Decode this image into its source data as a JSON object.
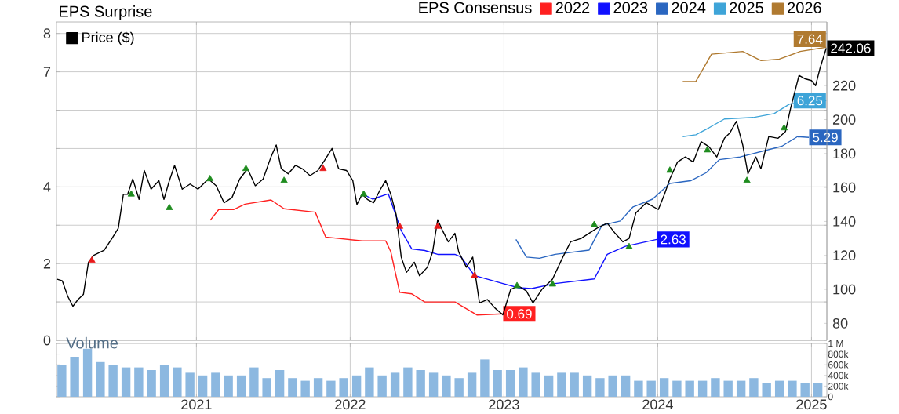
{
  "chart_data": [
    {
      "type": "line",
      "legend_title": "EPS Consensus",
      "annotations": [
        "EPS Surprise"
      ],
      "series": [
        {
          "name": "2022",
          "color": "#ff2020",
          "axis": "y",
          "x": [
            2021.09,
            2021.145,
            2021.244,
            2021.316,
            2021.485,
            2021.57,
            2021.773,
            2021.841,
            2022.078,
            2022.231,
            2022.264,
            2022.322,
            2022.401,
            2022.485,
            2022.681,
            2022.824,
            2022.993
          ],
          "values": [
            3.13,
            3.41,
            3.41,
            3.55,
            3.66,
            3.43,
            3.34,
            2.69,
            2.59,
            2.59,
            2.31,
            1.25,
            1.21,
            1.0,
            1.0,
            0.66,
            0.69
          ],
          "value_labels": [
            null,
            null,
            null,
            null,
            null,
            null,
            null,
            null,
            null,
            null,
            null,
            null,
            null,
            null,
            null,
            null,
            "0.69"
          ]
        },
        {
          "name": "2023",
          "color": "#1010ff",
          "axis": "y",
          "x": [
            2022.078,
            2022.146,
            2022.248,
            2022.332,
            2022.401,
            2022.485,
            2022.569,
            2022.681,
            2022.722,
            2022.808,
            2022.993,
            2023.095,
            2023.18,
            2023.333,
            2023.587,
            2023.672,
            2023.79,
            2023.994
          ],
          "values": [
            3.82,
            3.68,
            3.82,
            2.86,
            2.38,
            2.34,
            2.24,
            2.24,
            2.17,
            1.69,
            1.48,
            1.37,
            1.35,
            1.48,
            1.6,
            2.24,
            2.45,
            2.63
          ],
          "value_labels": [
            null,
            null,
            null,
            null,
            null,
            null,
            null,
            null,
            null,
            null,
            null,
            null,
            null,
            null,
            null,
            null,
            null,
            "2.63"
          ]
        },
        {
          "name": "2024",
          "color": "#2a66c0",
          "axis": "y",
          "x": [
            2023.078,
            2023.146,
            2023.231,
            2023.333,
            2023.553,
            2023.638,
            2023.757,
            2023.84,
            2023.966,
            2024.079,
            2024.214,
            2024.316,
            2024.4,
            2024.536,
            2024.672,
            2024.808,
            2024.909,
            2024.983
          ],
          "values": [
            2.63,
            2.17,
            2.14,
            2.24,
            2.35,
            3.0,
            3.11,
            3.48,
            3.68,
            4.09,
            4.16,
            4.37,
            4.71,
            4.78,
            4.92,
            5.06,
            5.31,
            5.29
          ],
          "value_labels": [
            null,
            null,
            null,
            null,
            null,
            null,
            null,
            null,
            null,
            null,
            null,
            null,
            null,
            null,
            null,
            null,
            null,
            "5.29"
          ]
        },
        {
          "name": "2025",
          "color": "#3ea4d8",
          "axis": "y",
          "x": [
            2024.163,
            2024.248,
            2024.333,
            2024.434,
            2024.621,
            2024.757,
            2024.858,
            2024.959,
            2025.096
          ],
          "values": [
            5.31,
            5.36,
            5.54,
            5.77,
            5.81,
            5.91,
            6.16,
            6.21,
            6.25
          ],
          "value_labels": [
            null,
            null,
            null,
            null,
            null,
            null,
            null,
            null,
            "6.25"
          ]
        },
        {
          "name": "2026",
          "color": "#b07a30",
          "axis": "y",
          "x": [
            2024.163,
            2024.248,
            2024.35,
            2024.553,
            2024.672,
            2024.791,
            2024.926,
            2025.096
          ],
          "values": [
            6.75,
            6.75,
            7.46,
            7.53,
            7.29,
            7.33,
            7.53,
            7.64
          ],
          "value_labels": [
            null,
            null,
            null,
            null,
            null,
            null,
            null,
            "7.64"
          ]
        },
        {
          "name": "Price ($)",
          "color": "#000000",
          "axis": "y2",
          "x": [
            2020.095,
            2020.128,
            2020.163,
            2020.197,
            2020.23,
            2020.265,
            2020.298,
            2020.332,
            2020.4,
            2020.451,
            2020.492,
            2020.525,
            2020.553,
            2020.586,
            2020.627,
            2020.661,
            2020.705,
            2020.756,
            2020.789,
            2020.824,
            2020.858,
            2020.908,
            2020.959,
            2021.01,
            2021.078,
            2021.129,
            2021.18,
            2021.231,
            2021.282,
            2021.333,
            2021.383,
            2021.434,
            2021.485,
            2021.519,
            2021.552,
            2021.597,
            2021.644,
            2021.689,
            2021.739,
            2021.79,
            2021.834,
            2021.882,
            2021.925,
            2021.976,
            2022.017,
            2022.044,
            2022.078,
            2022.112,
            2022.152,
            2022.197,
            2022.231,
            2022.264,
            2022.299,
            2022.332,
            2022.366,
            2022.417,
            2022.451,
            2022.502,
            2022.536,
            2022.569,
            2022.604,
            2022.638,
            2022.681,
            2022.706,
            2022.756,
            2022.797,
            2022.841,
            2022.892,
            2022.942,
            2022.993,
            2023.044,
            2023.095,
            2023.146,
            2023.189,
            2023.247,
            2023.316,
            2023.383,
            2023.434,
            2023.502,
            2023.553,
            2023.604,
            2023.672,
            2023.723,
            2023.774,
            2023.814,
            2023.858,
            2023.926,
            2024.004,
            2024.044,
            2024.079,
            2024.129,
            2024.18,
            2024.231,
            2024.282,
            2024.333,
            2024.384,
            2024.434,
            2024.468,
            2024.512,
            2024.553,
            2024.587,
            2024.638,
            2024.671,
            2024.722,
            2024.783,
            2024.831,
            2024.865,
            2024.919,
            2024.959,
            2025.0,
            2025.027,
            2025.055,
            2025.096
          ],
          "values": [
            106,
            105,
            96,
            90,
            94,
            97,
            116,
            120,
            123,
            130,
            136,
            156,
            156,
            165,
            153,
            170,
            159,
            164,
            153,
            164,
            173,
            159,
            162,
            159,
            165,
            161,
            151,
            154,
            165,
            171,
            161,
            165,
            178,
            185,
            171,
            168,
            173,
            171,
            167,
            170,
            176,
            183,
            171,
            170,
            164,
            150,
            156,
            153,
            151,
            159,
            164,
            156,
            144,
            119,
            110,
            116,
            108,
            113,
            122,
            141,
            134,
            128,
            133,
            122,
            113,
            119,
            92,
            94,
            89,
            85,
            100,
            102,
            99,
            92,
            100,
            106,
            119,
            128,
            130,
            133,
            136,
            139,
            133,
            128,
            130,
            145,
            151,
            147,
            156,
            165,
            175,
            178,
            175,
            187,
            184,
            178,
            189,
            192,
            199,
            185,
            168,
            178,
            171,
            190,
            189,
            193,
            207,
            226,
            224,
            223,
            220,
            230,
            242.06
          ],
          "value_labels": [
            null,
            null,
            null,
            null,
            null,
            null,
            null,
            null,
            null,
            null,
            null,
            null,
            null,
            null,
            null,
            null,
            null,
            null,
            null,
            null,
            null,
            null,
            null,
            null,
            null,
            null,
            null,
            null,
            null,
            null,
            null,
            null,
            null,
            null,
            null,
            null,
            null,
            null,
            null,
            null,
            null,
            null,
            null,
            null,
            null,
            null,
            null,
            null,
            null,
            null,
            null,
            null,
            null,
            null,
            null,
            null,
            null,
            null,
            null,
            null,
            null,
            null,
            null,
            null,
            null,
            null,
            null,
            null,
            null,
            null,
            null,
            null,
            null,
            null,
            null,
            null,
            null,
            null,
            null,
            null,
            null,
            null,
            null,
            null,
            null,
            null,
            null,
            null,
            null,
            null,
            null,
            null,
            null,
            null,
            null,
            null,
            null,
            null,
            null,
            null,
            null,
            null,
            null,
            null,
            null,
            null,
            null,
            null,
            null,
            null,
            null,
            null,
            "242.06"
          ]
        },
        {
          "type": "scatter",
          "color": "#1e8c1e",
          "axis": "y2",
          "marker": "triangle",
          "x": [
            2020.576,
            2020.824,
            2021.088,
            2021.322,
            2021.57,
            2022.088,
            2023.085,
            2023.316,
            2023.587,
            2023.814,
            2024.079,
            2024.323,
            2024.58,
            2024.822
          ],
          "values": [
            156,
            148,
            165,
            171,
            164,
            156,
            102,
            103,
            138,
            125,
            170,
            182,
            164,
            195
          ]
        },
        {
          "type": "scatter",
          "color": "#e8191a",
          "axis": "y2",
          "marker": "triangle",
          "x": [
            2020.32,
            2021.824,
            2022.322,
            2022.569,
            2022.808
          ],
          "values": [
            117,
            171,
            137,
            137,
            108
          ]
        }
      ],
      "xlim": [
        2020.09,
        2025.1
      ],
      "xticks": [
        2021,
        2022,
        2023,
        2024,
        2025
      ],
      "ylim": [
        0,
        8.3
      ],
      "yticks": [
        0,
        {
          "value": 1,
          "label": null
        },
        2,
        {
          "value": 3,
          "label": null
        },
        4,
        {
          "value": 5,
          "label": null
        },
        {
          "value": 6,
          "label": null
        },
        7,
        8
      ],
      "y2lim": [
        70,
        257.5
      ],
      "y2ticks": [
        80,
        100,
        120,
        140,
        160,
        180,
        200,
        220,
        {
          "value": 240,
          "label": null
        }
      ],
      "grid": true,
      "legend": "top",
      "tick_labels": "y"
    },
    {
      "type": "bar",
      "title": "Volume",
      "color": "#8cb8e0",
      "x": [
        2020.125,
        2020.208,
        2020.292,
        2020.375,
        2020.458,
        2020.542,
        2020.625,
        2020.708,
        2020.792,
        2020.875,
        2020.958,
        2021.042,
        2021.125,
        2021.208,
        2021.292,
        2021.375,
        2021.458,
        2021.542,
        2021.625,
        2021.708,
        2021.792,
        2021.875,
        2021.958,
        2022.042,
        2022.125,
        2022.208,
        2022.292,
        2022.375,
        2022.458,
        2022.542,
        2022.625,
        2022.708,
        2022.792,
        2022.875,
        2022.958,
        2023.042,
        2023.125,
        2023.208,
        2023.292,
        2023.375,
        2023.458,
        2023.542,
        2023.625,
        2023.708,
        2023.792,
        2023.875,
        2023.958,
        2024.042,
        2024.125,
        2024.208,
        2024.292,
        2024.375,
        2024.458,
        2024.542,
        2024.625,
        2024.708,
        2024.792,
        2024.875,
        2024.958,
        2025.042
      ],
      "values": [
        600000,
        750000,
        900000,
        650000,
        600000,
        550000,
        550000,
        500000,
        600000,
        550000,
        450000,
        400000,
        450000,
        400000,
        400000,
        550000,
        350000,
        500000,
        350000,
        300000,
        350000,
        300000,
        350000,
        400000,
        550000,
        400000,
        450000,
        550000,
        500000,
        450000,
        400000,
        350000,
        450000,
        700000,
        500000,
        500000,
        550000,
        450000,
        400000,
        450000,
        450000,
        400000,
        350000,
        400000,
        400000,
        300000,
        300000,
        350000,
        300000,
        300000,
        300000,
        350000,
        300000,
        300000,
        350000,
        250000,
        300000,
        300000,
        250000,
        250000
      ],
      "xlim": [
        2020.09,
        2025.1
      ],
      "xticks": [
        2021,
        2022,
        2023,
        2024,
        2025
      ],
      "ylim": [
        0,
        1000000
      ],
      "yticks": [
        0,
        {
          "value": 200000,
          "label": "200k"
        },
        {
          "value": 400000,
          "label": "400k"
        },
        {
          "value": 600000,
          "label": "600k"
        },
        {
          "value": 800000,
          "label": "800k"
        },
        {
          "value": 1000000,
          "label": "1 M"
        }
      ],
      "grid": "x"
    }
  ]
}
